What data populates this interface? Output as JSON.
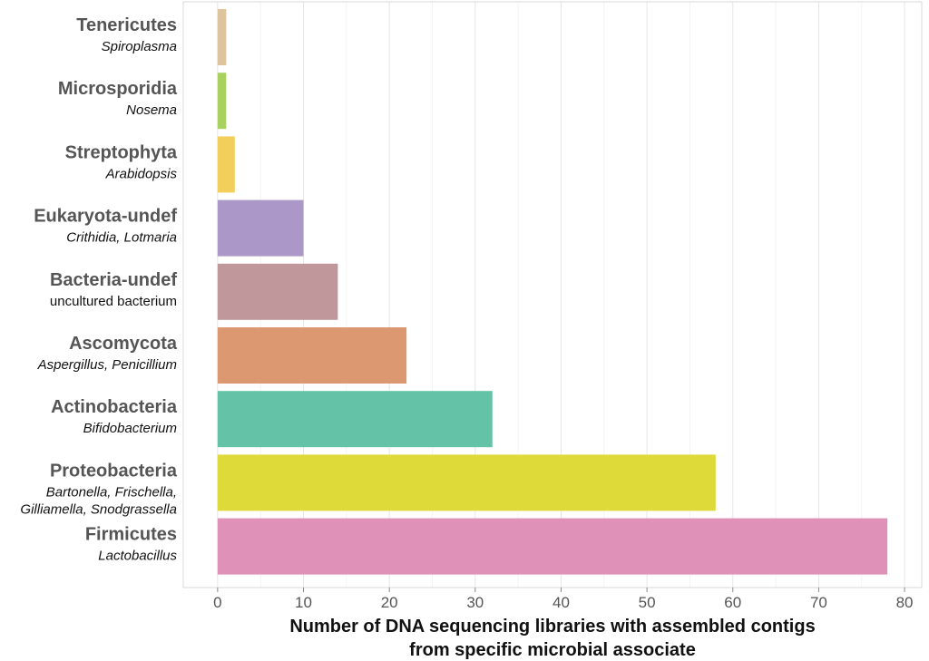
{
  "chart_data": {
    "type": "bar",
    "orientation": "horizontal",
    "categories": [
      {
        "name": "Firmicutes",
        "sub": [
          "Lactobacillus"
        ],
        "italic": true,
        "color": "#E091B8"
      },
      {
        "name": "Proteobacteria",
        "sub": [
          "Bartonella, Frischella,",
          "Gilliamella, Snodgrassella"
        ],
        "italic": true,
        "color": "#DEDA3A"
      },
      {
        "name": "Actinobacteria",
        "sub": [
          "Bifidobacterium"
        ],
        "italic": true,
        "color": "#64C3A6"
      },
      {
        "name": "Ascomycota",
        "sub": [
          "Aspergillus, Penicillium"
        ],
        "italic": true,
        "color": "#DC9870"
      },
      {
        "name": "Bacteria-undef",
        "sub": [
          "uncultured bacterium"
        ],
        "italic": false,
        "color": "#C0979A"
      },
      {
        "name": "Eukaryota-undef",
        "sub": [
          "Crithidia, Lotmaria"
        ],
        "italic": true,
        "color": "#AC98C8"
      },
      {
        "name": "Streptophyta",
        "sub": [
          "Arabidopsis"
        ],
        "italic": true,
        "color": "#F2CE5B"
      },
      {
        "name": "Microsporidia",
        "sub": [
          "Nosema"
        ],
        "italic": true,
        "color": "#A8D160"
      },
      {
        "name": "Tenericutes",
        "sub": [
          "Spiroplasma"
        ],
        "italic": true,
        "color": "#DEC49C"
      }
    ],
    "values": [
      78,
      58,
      32,
      22,
      14,
      10,
      2,
      1,
      1
    ],
    "xlabel": [
      "Number of DNA sequencing libraries with assembled contigs",
      "from specific microbial associate"
    ],
    "xlim": [
      -4,
      82
    ],
    "xticks": [
      0,
      10,
      20,
      30,
      40,
      50,
      60,
      70,
      80
    ],
    "grid": true,
    "legend": "none"
  }
}
